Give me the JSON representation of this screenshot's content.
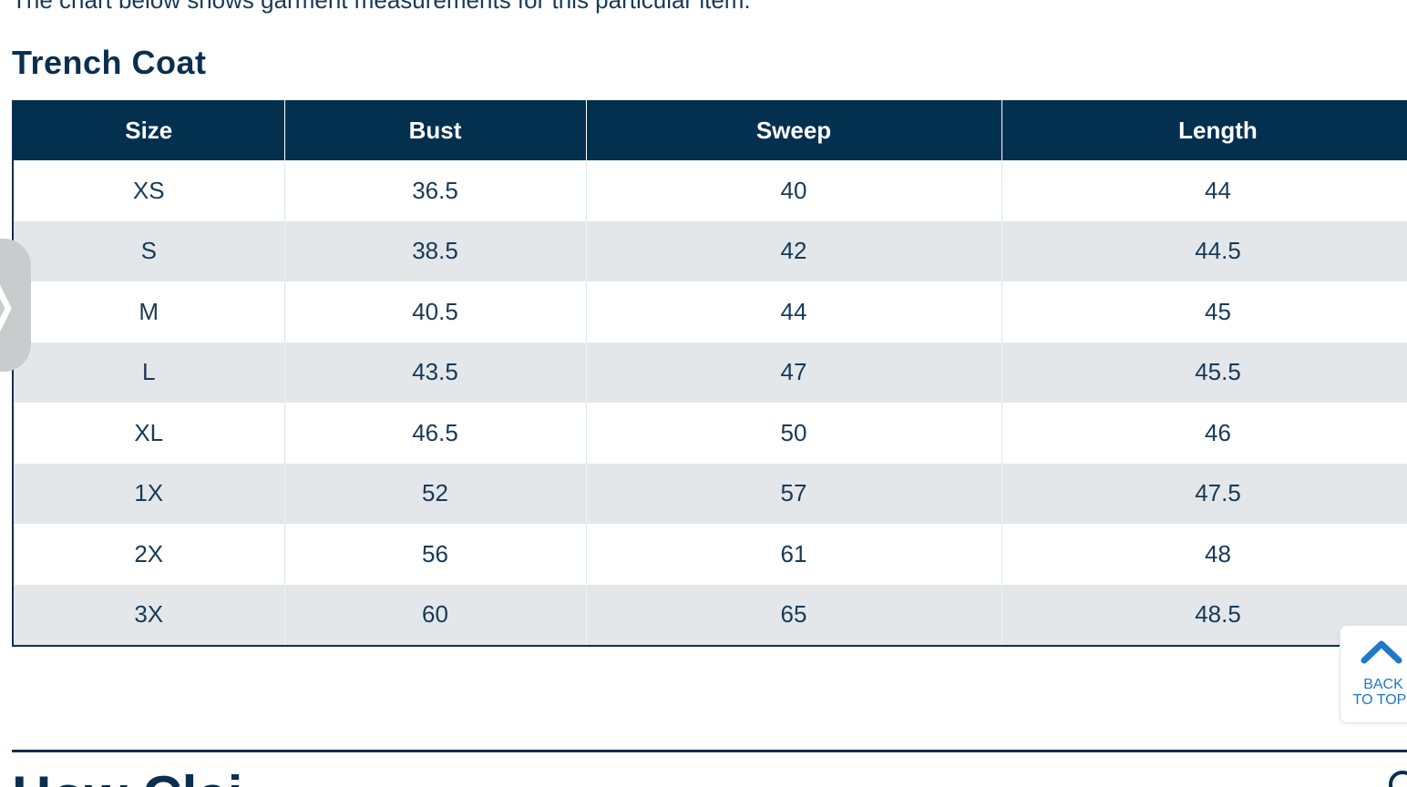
{
  "intro": {
    "text": "The chart below shows garment measurements for this particular item."
  },
  "section": {
    "title": "Trench Coat"
  },
  "table": {
    "headers": [
      "Size",
      "Bust",
      "Sweep",
      "Length"
    ],
    "rows": [
      [
        "XS",
        "36.5",
        "40",
        "44"
      ],
      [
        "S",
        "38.5",
        "42",
        "44.5"
      ],
      [
        "M",
        "40.5",
        "44",
        "45"
      ],
      [
        "L",
        "43.5",
        "47",
        "45.5"
      ],
      [
        "XL",
        "46.5",
        "50",
        "46"
      ],
      [
        "1X",
        "52",
        "57",
        "47.5"
      ],
      [
        "2X",
        "56",
        "61",
        "48"
      ],
      [
        "3X",
        "60",
        "65",
        "48.5"
      ]
    ]
  },
  "side_tab": {
    "icon": "chevron-right-icon",
    "glyph": "❭"
  },
  "back_to_top": {
    "line1": "BACK",
    "line2": "TO TOP",
    "icon": "chevron-up-icon"
  },
  "next_section": {
    "heading": "How Clai"
  },
  "colors": {
    "header_bg": "#04304f",
    "alt_row_bg": "#e3e7ea",
    "text": "#173a57",
    "accent_blue": "#1f78c8"
  }
}
